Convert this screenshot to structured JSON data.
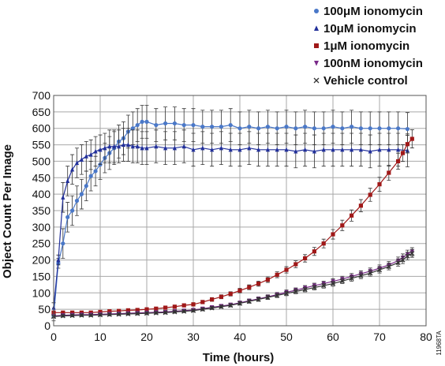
{
  "chart_data": {
    "type": "line",
    "xlabel": "Time (hours)",
    "ylabel": "Object Count Per Image",
    "xlim": [
      0,
      80
    ],
    "ylim": [
      0,
      700
    ],
    "xticks": [
      0,
      10,
      20,
      30,
      40,
      50,
      60,
      70,
      80
    ],
    "yticks": [
      0,
      50,
      100,
      150,
      200,
      250,
      300,
      350,
      400,
      450,
      500,
      550,
      600,
      650,
      700
    ],
    "grid": true,
    "legend_position": "top-right",
    "figure_id": "11968TA",
    "series": [
      {
        "name": "100μM ionomycin",
        "color": "#4a78c8",
        "marker": "circle",
        "points": [
          [
            0,
            30
          ],
          [
            1,
            190
          ],
          [
            2,
            250
          ],
          [
            3,
            330
          ],
          [
            4,
            350
          ],
          [
            5,
            380
          ],
          [
            6,
            400
          ],
          [
            7,
            425
          ],
          [
            8,
            455
          ],
          [
            9,
            470
          ],
          [
            10,
            490
          ],
          [
            11,
            510
          ],
          [
            12,
            525
          ],
          [
            13,
            540
          ],
          [
            14,
            560
          ],
          [
            15,
            570
          ],
          [
            16,
            590
          ],
          [
            17,
            600
          ],
          [
            18,
            610
          ],
          [
            19,
            620
          ],
          [
            20,
            620
          ],
          [
            22,
            610
          ],
          [
            24,
            615
          ],
          [
            26,
            615
          ],
          [
            28,
            610
          ],
          [
            30,
            610
          ],
          [
            32,
            605
          ],
          [
            34,
            605
          ],
          [
            36,
            605
          ],
          [
            38,
            610
          ],
          [
            40,
            600
          ],
          [
            42,
            605
          ],
          [
            44,
            600
          ],
          [
            46,
            605
          ],
          [
            48,
            600
          ],
          [
            50,
            605
          ],
          [
            52,
            600
          ],
          [
            54,
            605
          ],
          [
            56,
            600
          ],
          [
            58,
            600
          ],
          [
            60,
            605
          ],
          [
            62,
            600
          ],
          [
            64,
            605
          ],
          [
            66,
            600
          ],
          [
            68,
            600
          ],
          [
            70,
            600
          ],
          [
            72,
            600
          ],
          [
            74,
            600
          ],
          [
            76,
            598
          ]
        ]
      },
      {
        "name": "10μM ionomycin",
        "color": "#22309a",
        "marker": "triangle-up",
        "points": [
          [
            0,
            55
          ],
          [
            1,
            200
          ],
          [
            2,
            390
          ],
          [
            3,
            440
          ],
          [
            4,
            475
          ],
          [
            5,
            495
          ],
          [
            6,
            505
          ],
          [
            7,
            515
          ],
          [
            8,
            520
          ],
          [
            9,
            530
          ],
          [
            10,
            535
          ],
          [
            11,
            540
          ],
          [
            12,
            545
          ],
          [
            13,
            545
          ],
          [
            14,
            545
          ],
          [
            15,
            550
          ],
          [
            16,
            550
          ],
          [
            17,
            545
          ],
          [
            18,
            545
          ],
          [
            19,
            540
          ],
          [
            20,
            540
          ],
          [
            22,
            545
          ],
          [
            24,
            540
          ],
          [
            26,
            540
          ],
          [
            28,
            545
          ],
          [
            30,
            535
          ],
          [
            32,
            540
          ],
          [
            34,
            535
          ],
          [
            36,
            540
          ],
          [
            38,
            535
          ],
          [
            40,
            535
          ],
          [
            42,
            540
          ],
          [
            44,
            535
          ],
          [
            46,
            535
          ],
          [
            48,
            535
          ],
          [
            50,
            535
          ],
          [
            52,
            530
          ],
          [
            54,
            535
          ],
          [
            56,
            530
          ],
          [
            58,
            535
          ],
          [
            60,
            535
          ],
          [
            62,
            535
          ],
          [
            64,
            535
          ],
          [
            66,
            535
          ],
          [
            68,
            530
          ],
          [
            70,
            535
          ],
          [
            72,
            535
          ],
          [
            74,
            535
          ],
          [
            76,
            533
          ]
        ]
      },
      {
        "name": "1μM ionomycin",
        "color": "#a01818",
        "marker": "square",
        "points": [
          [
            0,
            40
          ],
          [
            2,
            40
          ],
          [
            4,
            40
          ],
          [
            6,
            40
          ],
          [
            8,
            40
          ],
          [
            10,
            42
          ],
          [
            12,
            44
          ],
          [
            14,
            45
          ],
          [
            16,
            47
          ],
          [
            18,
            48
          ],
          [
            20,
            50
          ],
          [
            22,
            52
          ],
          [
            24,
            55
          ],
          [
            26,
            58
          ],
          [
            28,
            62
          ],
          [
            30,
            65
          ],
          [
            32,
            72
          ],
          [
            34,
            80
          ],
          [
            36,
            88
          ],
          [
            38,
            97
          ],
          [
            40,
            107
          ],
          [
            42,
            117
          ],
          [
            44,
            128
          ],
          [
            46,
            140
          ],
          [
            48,
            155
          ],
          [
            50,
            170
          ],
          [
            52,
            187
          ],
          [
            54,
            205
          ],
          [
            56,
            226
          ],
          [
            58,
            250
          ],
          [
            60,
            278
          ],
          [
            62,
            305
          ],
          [
            64,
            335
          ],
          [
            66,
            365
          ],
          [
            68,
            398
          ],
          [
            70,
            430
          ],
          [
            72,
            465
          ],
          [
            74,
            500
          ],
          [
            75,
            525
          ],
          [
            76,
            552
          ],
          [
            77,
            568
          ]
        ]
      },
      {
        "name": "100nM ionomycin",
        "color": "#7a2a8a",
        "marker": "triangle-down",
        "points": [
          [
            0,
            30
          ],
          [
            2,
            32
          ],
          [
            4,
            33
          ],
          [
            6,
            34
          ],
          [
            8,
            34
          ],
          [
            10,
            35
          ],
          [
            12,
            36
          ],
          [
            14,
            37
          ],
          [
            16,
            38
          ],
          [
            18,
            39
          ],
          [
            20,
            40
          ],
          [
            22,
            41
          ],
          [
            24,
            42
          ],
          [
            26,
            44
          ],
          [
            28,
            46
          ],
          [
            30,
            48
          ],
          [
            32,
            52
          ],
          [
            34,
            56
          ],
          [
            36,
            60
          ],
          [
            38,
            64
          ],
          [
            40,
            70
          ],
          [
            42,
            76
          ],
          [
            44,
            82
          ],
          [
            46,
            88
          ],
          [
            48,
            95
          ],
          [
            50,
            102
          ],
          [
            52,
            108
          ],
          [
            54,
            115
          ],
          [
            56,
            122
          ],
          [
            58,
            128
          ],
          [
            60,
            135
          ],
          [
            62,
            142
          ],
          [
            64,
            150
          ],
          [
            66,
            158
          ],
          [
            68,
            166
          ],
          [
            70,
            175
          ],
          [
            72,
            185
          ],
          [
            74,
            198
          ],
          [
            75,
            207
          ],
          [
            76,
            218
          ],
          [
            77,
            225
          ]
        ]
      },
      {
        "name": "Vehicle control",
        "color": "#333333",
        "marker": "x",
        "points": [
          [
            0,
            28
          ],
          [
            2,
            30
          ],
          [
            4,
            31
          ],
          [
            6,
            32
          ],
          [
            8,
            32
          ],
          [
            10,
            33
          ],
          [
            12,
            34
          ],
          [
            14,
            35
          ],
          [
            16,
            36
          ],
          [
            18,
            37
          ],
          [
            20,
            38
          ],
          [
            22,
            39
          ],
          [
            24,
            40
          ],
          [
            26,
            42
          ],
          [
            28,
            44
          ],
          [
            30,
            46
          ],
          [
            32,
            50
          ],
          [
            34,
            54
          ],
          [
            36,
            58
          ],
          [
            38,
            62
          ],
          [
            40,
            68
          ],
          [
            42,
            74
          ],
          [
            44,
            80
          ],
          [
            46,
            86
          ],
          [
            48,
            92
          ],
          [
            50,
            98
          ],
          [
            52,
            104
          ],
          [
            54,
            110
          ],
          [
            56,
            116
          ],
          [
            58,
            122
          ],
          [
            60,
            128
          ],
          [
            62,
            136
          ],
          [
            64,
            144
          ],
          [
            66,
            152
          ],
          [
            68,
            160
          ],
          [
            70,
            170
          ],
          [
            72,
            180
          ],
          [
            74,
            192
          ],
          [
            75,
            200
          ],
          [
            76,
            212
          ],
          [
            77,
            220
          ]
        ]
      }
    ]
  }
}
